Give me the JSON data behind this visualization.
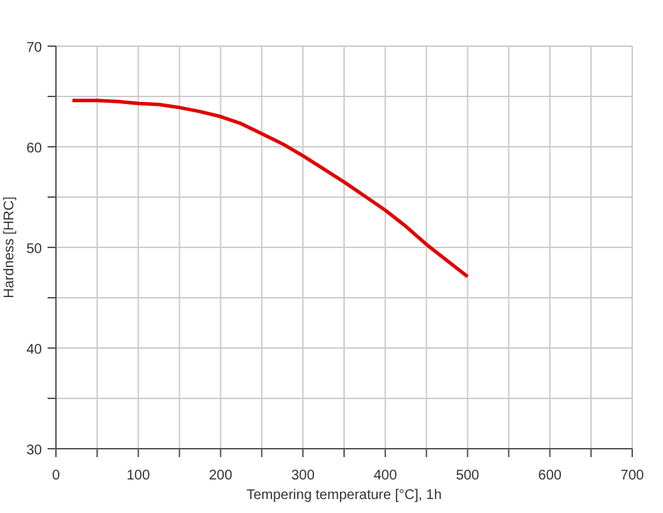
{
  "chart_data": {
    "type": "line",
    "xlabel": "Tempering temperature [°C], 1h",
    "ylabel": "Hardness [HRC]",
    "x": [
      20,
      50,
      75,
      100,
      125,
      150,
      175,
      200,
      225,
      250,
      275,
      300,
      325,
      350,
      375,
      400,
      425,
      450,
      475,
      500
    ],
    "series": [
      {
        "color": "#e00000",
        "values": [
          64.6,
          64.6,
          64.5,
          64.3,
          64.2,
          63.9,
          63.5,
          63.0,
          62.3,
          61.3,
          60.3,
          59.1,
          57.8,
          56.5,
          55.1,
          53.7,
          52.1,
          50.3,
          48.7,
          47.1
        ]
      }
    ],
    "xlim": [
      0,
      700
    ],
    "xticks": [
      0,
      {
        "value": 50,
        "label": null
      },
      100,
      {
        "value": 150,
        "label": null
      },
      200,
      {
        "value": 250,
        "label": null
      },
      300,
      {
        "value": 350,
        "label": null
      },
      400,
      {
        "value": 450,
        "label": null
      },
      500,
      {
        "value": 550,
        "label": null
      },
      600,
      {
        "value": 650,
        "label": null
      },
      700
    ],
    "ylim": [
      30,
      70
    ],
    "yticks": [
      30,
      {
        "value": 35,
        "label": null
      },
      40,
      {
        "value": 45,
        "label": null
      },
      50,
      {
        "value": 55,
        "label": null
      },
      60,
      {
        "value": 65,
        "label": null
      },
      70
    ],
    "grid": true,
    "marker": "none",
    "line_style": "solid"
  }
}
